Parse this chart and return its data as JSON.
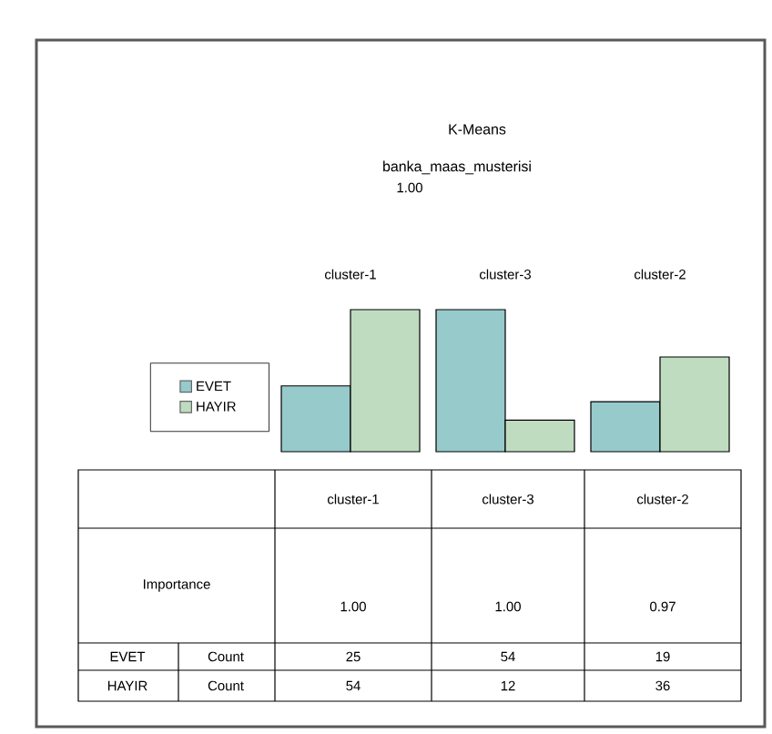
{
  "chart_data": {
    "type": "bar",
    "title": "K-Means",
    "subtitle": "banka_maas_musterisi",
    "categories": [
      "cluster-1",
      "cluster-3",
      "cluster-2"
    ],
    "series": [
      {
        "name": "EVET",
        "color": "#96cacb",
        "values": [
          25,
          54,
          19
        ]
      },
      {
        "name": "HAYIR",
        "color": "#bfdcc0",
        "values": [
          54,
          12,
          36
        ]
      }
    ],
    "annotations": [
      "1.00",
      "Importance",
      "1.00",
      "1.00",
      "0.97",
      "Count",
      "Count"
    ],
    "data_labels": true,
    "legend": "left"
  }
}
